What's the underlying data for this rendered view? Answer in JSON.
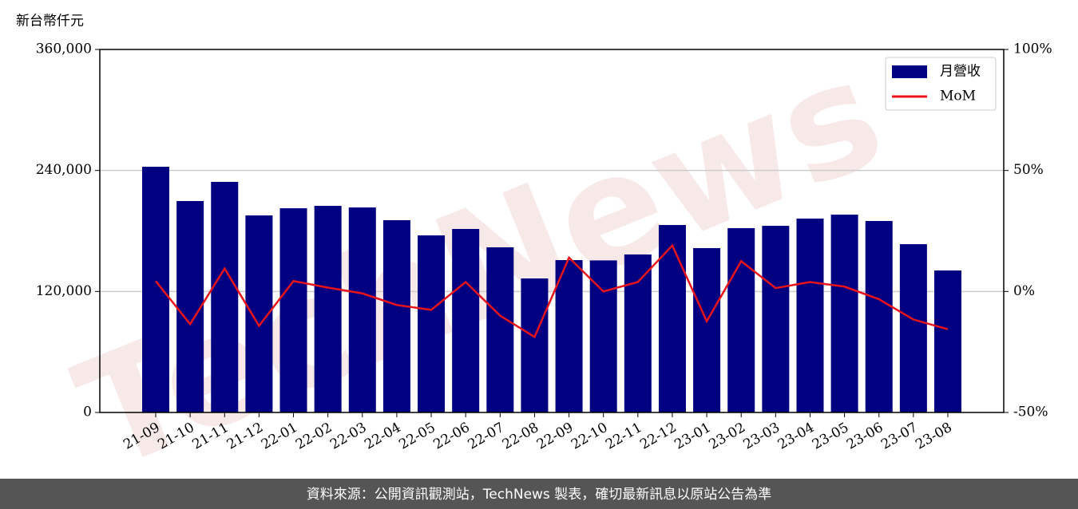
{
  "chart_data": {
    "type": "bar_line",
    "y_axis_label": "新台幣仟元",
    "watermark": "TechNews",
    "footer": "資料來源：公開資訊觀測站，TechNews 製表，確切最新訊息以原站公告為準",
    "categories": [
      "21-09",
      "21-10",
      "21-11",
      "21-12",
      "22-01",
      "22-02",
      "22-03",
      "22-04",
      "22-05",
      "22-06",
      "22-07",
      "22-08",
      "22-09",
      "22-10",
      "22-11",
      "22-12",
      "23-01",
      "23-02",
      "23-03",
      "23-04",
      "23-05",
      "23-06",
      "23-07",
      "23-08"
    ],
    "series": [
      {
        "name": "月營收",
        "type": "bar",
        "color": "#000080",
        "values": [
          243700,
          209700,
          228700,
          195400,
          202500,
          204900,
          203300,
          190700,
          175600,
          182000,
          163800,
          132900,
          151100,
          150800,
          156700,
          185900,
          163000,
          182800,
          185100,
          192300,
          196200,
          189900,
          166900,
          140800
        ]
      },
      {
        "name": "MoM",
        "type": "line",
        "axis": "y2",
        "color": "#e8141c",
        "values": [
          4.3,
          -13.5,
          9.5,
          -14.2,
          4.3,
          1.6,
          -0.8,
          -5.6,
          -7.6,
          3.9,
          -10,
          -18.8,
          14,
          0,
          3.9,
          19,
          -12.3,
          12.5,
          1.4,
          3.9,
          2,
          -3.2,
          -11.6,
          -15.6
        ]
      }
    ],
    "ylim": [
      0,
      360000
    ],
    "yticks": [
      0,
      {
        "value": 120000,
        "label": "120,000"
      },
      {
        "value": 240000,
        "label": "240,000"
      },
      {
        "value": 360000,
        "label": "360,000"
      }
    ],
    "y2lim": [
      -50,
      100
    ],
    "y2ticks": [
      {
        "value": -50,
        "label": "-50%"
      },
      {
        "value": 0,
        "label": "0%"
      },
      {
        "value": 50,
        "label": "50%"
      },
      {
        "value": 100,
        "label": "100%"
      }
    ],
    "grid": true,
    "legend": "upper right"
  }
}
